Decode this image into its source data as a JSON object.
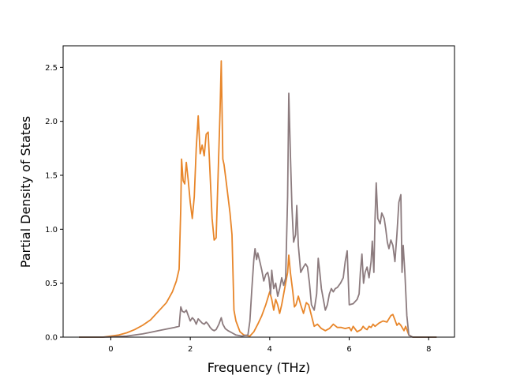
{
  "chart_data": {
    "type": "line",
    "title": "",
    "xlabel": "Frequency (THz)",
    "ylabel": "Partial Density of States",
    "xlim": [
      -1.2,
      8.65
    ],
    "ylim": [
      0,
      2.7
    ],
    "xticks": [
      0,
      2,
      4,
      6,
      8
    ],
    "yticks": [
      0.0,
      0.5,
      1.0,
      1.5,
      2.0,
      2.5
    ],
    "xtick_labels": [
      "0",
      "2",
      "4",
      "6",
      "8"
    ],
    "ytick_labels": [
      "0.0",
      "0.5",
      "1.0",
      "1.5",
      "2.0",
      "2.5"
    ],
    "grid": false,
    "legend": "none",
    "series": [
      {
        "color": "#e8862a",
        "points": [
          [
            -0.8,
            0
          ],
          [
            -0.2,
            0
          ],
          [
            0,
            0.01
          ],
          [
            0.2,
            0.02
          ],
          [
            0.4,
            0.04
          ],
          [
            0.6,
            0.07
          ],
          [
            0.8,
            0.11
          ],
          [
            1.0,
            0.16
          ],
          [
            1.2,
            0.24
          ],
          [
            1.4,
            0.32
          ],
          [
            1.55,
            0.42
          ],
          [
            1.65,
            0.52
          ],
          [
            1.72,
            0.63
          ],
          [
            1.76,
            1.2
          ],
          [
            1.78,
            1.65
          ],
          [
            1.82,
            1.45
          ],
          [
            1.86,
            1.42
          ],
          [
            1.9,
            1.62
          ],
          [
            1.95,
            1.45
          ],
          [
            2.0,
            1.25
          ],
          [
            2.05,
            1.1
          ],
          [
            2.1,
            1.3
          ],
          [
            2.15,
            1.75
          ],
          [
            2.2,
            2.05
          ],
          [
            2.25,
            1.7
          ],
          [
            2.3,
            1.78
          ],
          [
            2.35,
            1.68
          ],
          [
            2.4,
            1.88
          ],
          [
            2.45,
            1.9
          ],
          [
            2.5,
            1.5
          ],
          [
            2.55,
            1.1
          ],
          [
            2.6,
            0.9
          ],
          [
            2.65,
            0.92
          ],
          [
            2.7,
            1.5
          ],
          [
            2.75,
            2.1
          ],
          [
            2.78,
            2.56
          ],
          [
            2.82,
            1.65
          ],
          [
            2.85,
            1.6
          ],
          [
            2.9,
            1.45
          ],
          [
            2.95,
            1.3
          ],
          [
            3.0,
            1.15
          ],
          [
            3.05,
            0.95
          ],
          [
            3.1,
            0.25
          ],
          [
            3.15,
            0.15
          ],
          [
            3.25,
            0.05
          ],
          [
            3.35,
            0.02
          ],
          [
            3.5,
            0.01
          ],
          [
            3.6,
            0.05
          ],
          [
            3.7,
            0.12
          ],
          [
            3.8,
            0.2
          ],
          [
            3.9,
            0.3
          ],
          [
            4.0,
            0.42
          ],
          [
            4.05,
            0.35
          ],
          [
            4.1,
            0.25
          ],
          [
            4.15,
            0.35
          ],
          [
            4.2,
            0.3
          ],
          [
            4.25,
            0.22
          ],
          [
            4.3,
            0.3
          ],
          [
            4.35,
            0.4
          ],
          [
            4.4,
            0.5
          ],
          [
            4.45,
            0.6
          ],
          [
            4.48,
            0.76
          ],
          [
            4.52,
            0.6
          ],
          [
            4.58,
            0.42
          ],
          [
            4.62,
            0.28
          ],
          [
            4.66,
            0.3
          ],
          [
            4.72,
            0.38
          ],
          [
            4.78,
            0.3
          ],
          [
            4.85,
            0.22
          ],
          [
            4.92,
            0.32
          ],
          [
            4.98,
            0.3
          ],
          [
            5.05,
            0.2
          ],
          [
            5.12,
            0.1
          ],
          [
            5.2,
            0.12
          ],
          [
            5.3,
            0.08
          ],
          [
            5.4,
            0.06
          ],
          [
            5.5,
            0.08
          ],
          [
            5.6,
            0.12
          ],
          [
            5.7,
            0.09
          ],
          [
            5.8,
            0.09
          ],
          [
            5.9,
            0.08
          ],
          [
            6.0,
            0.09
          ],
          [
            6.05,
            0.06
          ],
          [
            6.1,
            0.1
          ],
          [
            6.2,
            0.05
          ],
          [
            6.3,
            0.07
          ],
          [
            6.35,
            0.1
          ],
          [
            6.4,
            0.08
          ],
          [
            6.45,
            0.07
          ],
          [
            6.5,
            0.1
          ],
          [
            6.55,
            0.09
          ],
          [
            6.6,
            0.12
          ],
          [
            6.65,
            0.1
          ],
          [
            6.75,
            0.13
          ],
          [
            6.85,
            0.15
          ],
          [
            6.95,
            0.14
          ],
          [
            7.05,
            0.2
          ],
          [
            7.1,
            0.21
          ],
          [
            7.15,
            0.16
          ],
          [
            7.2,
            0.11
          ],
          [
            7.25,
            0.13
          ],
          [
            7.3,
            0.11
          ],
          [
            7.38,
            0.06
          ],
          [
            7.42,
            0.1
          ],
          [
            7.5,
            0.02
          ],
          [
            7.6,
            0
          ],
          [
            8.0,
            0
          ],
          [
            8.2,
            0
          ]
        ]
      },
      {
        "color": "#8c7b7e",
        "points": [
          [
            -0.8,
            0
          ],
          [
            -0.2,
            0
          ],
          [
            0,
            0.002
          ],
          [
            0.4,
            0.01
          ],
          [
            0.8,
            0.03
          ],
          [
            1.0,
            0.045
          ],
          [
            1.2,
            0.06
          ],
          [
            1.4,
            0.075
          ],
          [
            1.6,
            0.09
          ],
          [
            1.72,
            0.1
          ],
          [
            1.76,
            0.28
          ],
          [
            1.8,
            0.24
          ],
          [
            1.85,
            0.23
          ],
          [
            1.9,
            0.25
          ],
          [
            1.95,
            0.2
          ],
          [
            2.0,
            0.15
          ],
          [
            2.05,
            0.18
          ],
          [
            2.1,
            0.16
          ],
          [
            2.15,
            0.12
          ],
          [
            2.2,
            0.17
          ],
          [
            2.25,
            0.15
          ],
          [
            2.3,
            0.13
          ],
          [
            2.35,
            0.12
          ],
          [
            2.4,
            0.14
          ],
          [
            2.45,
            0.12
          ],
          [
            2.5,
            0.09
          ],
          [
            2.55,
            0.07
          ],
          [
            2.6,
            0.06
          ],
          [
            2.65,
            0.07
          ],
          [
            2.72,
            0.12
          ],
          [
            2.78,
            0.18
          ],
          [
            2.82,
            0.12
          ],
          [
            2.88,
            0.08
          ],
          [
            2.95,
            0.06
          ],
          [
            3.05,
            0.04
          ],
          [
            3.15,
            0.02
          ],
          [
            3.3,
            0.01
          ],
          [
            3.45,
            0.02
          ],
          [
            3.5,
            0.15
          ],
          [
            3.55,
            0.45
          ],
          [
            3.6,
            0.72
          ],
          [
            3.63,
            0.82
          ],
          [
            3.67,
            0.72
          ],
          [
            3.7,
            0.78
          ],
          [
            3.75,
            0.7
          ],
          [
            3.8,
            0.62
          ],
          [
            3.85,
            0.52
          ],
          [
            3.9,
            0.58
          ],
          [
            3.95,
            0.6
          ],
          [
            3.98,
            0.55
          ],
          [
            4.02,
            0.4
          ],
          [
            4.05,
            0.62
          ],
          [
            4.1,
            0.45
          ],
          [
            4.15,
            0.5
          ],
          [
            4.2,
            0.38
          ],
          [
            4.25,
            0.45
          ],
          [
            4.3,
            0.55
          ],
          [
            4.35,
            0.48
          ],
          [
            4.4,
            0.55
          ],
          [
            4.45,
            1.3
          ],
          [
            4.48,
            2.26
          ],
          [
            4.52,
            1.7
          ],
          [
            4.56,
            1.2
          ],
          [
            4.6,
            0.88
          ],
          [
            4.65,
            0.95
          ],
          [
            4.68,
            1.22
          ],
          [
            4.72,
            0.85
          ],
          [
            4.78,
            0.6
          ],
          [
            4.85,
            0.65
          ],
          [
            4.9,
            0.68
          ],
          [
            4.95,
            0.65
          ],
          [
            5.0,
            0.5
          ],
          [
            5.05,
            0.3
          ],
          [
            5.12,
            0.25
          ],
          [
            5.18,
            0.4
          ],
          [
            5.22,
            0.73
          ],
          [
            5.26,
            0.6
          ],
          [
            5.3,
            0.45
          ],
          [
            5.35,
            0.35
          ],
          [
            5.4,
            0.25
          ],
          [
            5.45,
            0.3
          ],
          [
            5.5,
            0.4
          ],
          [
            5.55,
            0.45
          ],
          [
            5.6,
            0.42
          ],
          [
            5.65,
            0.45
          ],
          [
            5.7,
            0.46
          ],
          [
            5.78,
            0.5
          ],
          [
            5.85,
            0.55
          ],
          [
            5.9,
            0.7
          ],
          [
            5.95,
            0.8
          ],
          [
            6.0,
            0.3
          ],
          [
            6.1,
            0.31
          ],
          [
            6.2,
            0.35
          ],
          [
            6.25,
            0.4
          ],
          [
            6.28,
            0.6
          ],
          [
            6.32,
            0.77
          ],
          [
            6.36,
            0.5
          ],
          [
            6.4,
            0.6
          ],
          [
            6.45,
            0.65
          ],
          [
            6.5,
            0.55
          ],
          [
            6.55,
            0.7
          ],
          [
            6.58,
            0.89
          ],
          [
            6.62,
            0.6
          ],
          [
            6.65,
            1.1
          ],
          [
            6.68,
            1.43
          ],
          [
            6.72,
            1.1
          ],
          [
            6.78,
            1.05
          ],
          [
            6.82,
            1.15
          ],
          [
            6.88,
            1.1
          ],
          [
            6.92,
            1.0
          ],
          [
            6.96,
            0.88
          ],
          [
            7.0,
            0.82
          ],
          [
            7.05,
            0.9
          ],
          [
            7.1,
            0.85
          ],
          [
            7.15,
            0.7
          ],
          [
            7.2,
            0.95
          ],
          [
            7.25,
            1.25
          ],
          [
            7.3,
            1.32
          ],
          [
            7.33,
            0.6
          ],
          [
            7.36,
            0.85
          ],
          [
            7.4,
            0.6
          ],
          [
            7.45,
            0.2
          ],
          [
            7.5,
            0.02
          ],
          [
            7.6,
            0
          ],
          [
            8.0,
            0
          ],
          [
            8.2,
            0
          ]
        ]
      }
    ]
  }
}
